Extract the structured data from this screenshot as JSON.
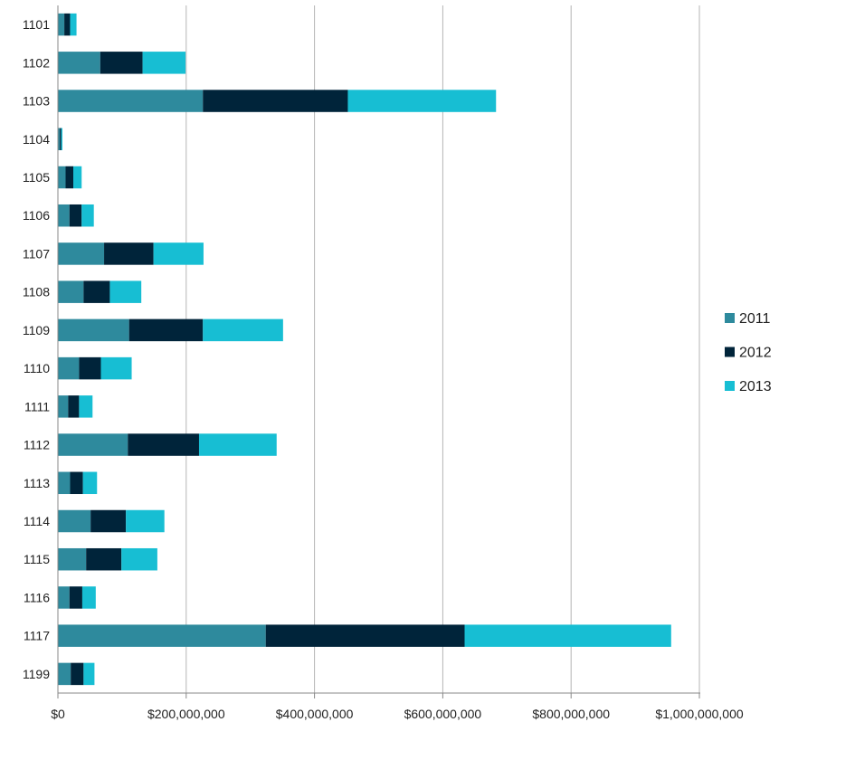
{
  "chart_data": {
    "type": "bar",
    "orientation": "horizontal",
    "stacked": true,
    "title": "",
    "xlabel": "",
    "ylabel": "",
    "categories": [
      "1101",
      "1102",
      "1103",
      "1104",
      "1105",
      "1106",
      "1107",
      "1108",
      "1109",
      "1110",
      "1111",
      "1112",
      "1113",
      "1114",
      "1115",
      "1116",
      "1117",
      "1199"
    ],
    "series": [
      {
        "name": "2011",
        "color": "#2e8a9d",
        "values": [
          10000000,
          66000000,
          226000000,
          3000000,
          12000000,
          18000000,
          72000000,
          40000000,
          111000000,
          33000000,
          16000000,
          109000000,
          19000000,
          51000000,
          44000000,
          18000000,
          324000000,
          20000000
        ]
      },
      {
        "name": "2012",
        "color": "#00243a",
        "values": [
          9000000,
          66000000,
          226000000,
          2000000,
          12000000,
          19000000,
          77000000,
          41000000,
          115000000,
          34000000,
          17000000,
          111000000,
          20000000,
          55000000,
          55000000,
          20000000,
          310000000,
          20000000
        ]
      },
      {
        "name": "2013",
        "color": "#17bed3",
        "values": [
          10000000,
          67000000,
          231000000,
          2000000,
          13000000,
          19000000,
          78000000,
          49000000,
          125000000,
          48000000,
          21000000,
          121000000,
          22000000,
          60000000,
          56000000,
          21000000,
          322000000,
          17000000
        ]
      }
    ],
    "xlim": [
      0,
      1000000000
    ],
    "xticks": [
      0,
      200000000,
      400000000,
      600000000,
      800000000,
      1000000000
    ],
    "xtick_labels": [
      "$0",
      "$200,000,000",
      "$400,000,000",
      "$600,000,000",
      "$800,000,000",
      "$1,000,000,000"
    ],
    "grid": "vertical",
    "legend": "right"
  }
}
